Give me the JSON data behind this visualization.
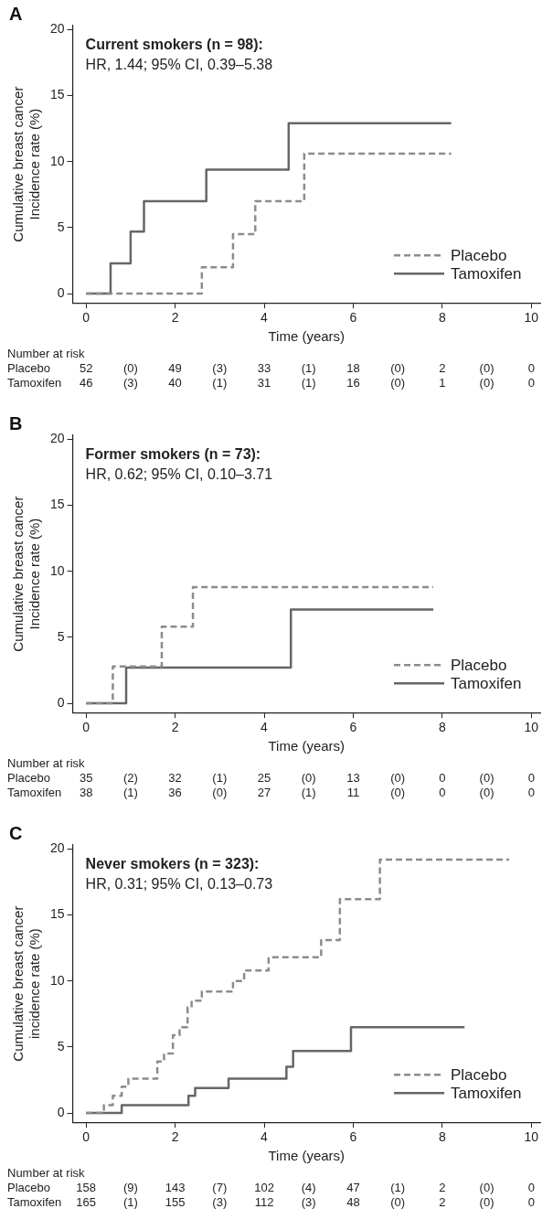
{
  "chart_data": [
    {
      "type": "step",
      "title": "Current smokers (n = 98):",
      "subtitle": "HR, 1.44; 95% CI, 0.39–5.38",
      "xlabel": "Time (years)",
      "ylabel": "Cumulative breast cancer Incidence rate (%)",
      "xlim": [
        -0.3,
        10.2
      ],
      "xticks": [
        0,
        2,
        4,
        6,
        8,
        10
      ],
      "ylim": [
        -0.7,
        20.3
      ],
      "yticks": [
        0,
        5,
        10,
        15,
        20
      ],
      "grid": false,
      "legend": "bottom right",
      "series": [
        {
          "name": "Placebo",
          "color": "#8c8c8c",
          "line_style": "dashed",
          "x": [
            0,
            2.6,
            3.3,
            3.8,
            4.9,
            8.2
          ],
          "values": [
            0,
            2.0,
            4.5,
            7.0,
            10.6,
            10.6
          ]
        },
        {
          "name": "Tamoxifen",
          "color": "#666666",
          "line_style": "solid",
          "x": [
            0,
            0.55,
            1.0,
            1.3,
            2.7,
            4.55,
            8.2
          ],
          "values": [
            0,
            2.3,
            4.7,
            7.0,
            9.4,
            12.9,
            12.9
          ]
        }
      ],
      "annotations": [
        "A",
        "Number at risk",
        "Placebo 52 (0) 49 (3) 33 (1) 18 (0) 2 (0) 0",
        "Tamoxifen 46 (3) 40 (1) 31 (1) 16 (0) 1 (0) 0"
      ]
    },
    {
      "type": "step",
      "title": "Former smokers (n = 73):",
      "subtitle": "HR, 0.62; 95% CI, 0.10–3.71",
      "xlabel": "Time (years)",
      "ylabel": "Cumulative breast cancer Incidence rate (%)",
      "xlim": [
        -0.3,
        10.2
      ],
      "xticks": [
        0,
        2,
        4,
        6,
        8,
        10
      ],
      "ylim": [
        -0.7,
        20.3
      ],
      "yticks": [
        0,
        5,
        10,
        15,
        20
      ],
      "grid": false,
      "legend": "bottom right",
      "series": [
        {
          "name": "Placebo",
          "color": "#8c8c8c",
          "line_style": "dashed",
          "x": [
            0,
            0.6,
            1.7,
            2.4,
            7.8
          ],
          "values": [
            0,
            2.8,
            5.8,
            8.8,
            8.8
          ]
        },
        {
          "name": "Tamoxifen",
          "color": "#666666",
          "line_style": "solid",
          "x": [
            0,
            0.9,
            4.6,
            7.8
          ],
          "values": [
            0,
            2.7,
            7.1,
            7.1
          ]
        }
      ],
      "annotations": [
        "B",
        "Number at risk",
        "Placebo 35 (2) 32 (1) 25 (0) 13 (0) 0 (0) 0",
        "Tamoxifen 38 (1) 36 (0) 27 (1) 11 (0) 0 (0) 0"
      ]
    },
    {
      "type": "step",
      "title": "Never smokers (n = 323):",
      "subtitle": "HR, 0.31; 95% CI, 0.13–0.73",
      "xlabel": "Time (years)",
      "ylabel": "Cumulative breast cancer incidence rate (%)",
      "xlim": [
        -0.3,
        10.2
      ],
      "xticks": [
        0,
        2,
        4,
        6,
        8,
        10
      ],
      "ylim": [
        -0.7,
        20.3
      ],
      "yticks": [
        0,
        5,
        10,
        15,
        20
      ],
      "grid": false,
      "legend": "bottom right",
      "series": [
        {
          "name": "Placebo",
          "color": "#8c8c8c",
          "line_style": "dashed",
          "x": [
            0,
            0.4,
            0.6,
            0.8,
            0.95,
            1.6,
            1.75,
            1.95,
            2.1,
            2.28,
            2.37,
            2.6,
            3.3,
            3.55,
            4.1,
            5.28,
            5.7,
            6.6,
            9.5
          ],
          "values": [
            0,
            0.6,
            1.3,
            2.0,
            2.6,
            3.9,
            4.5,
            5.9,
            6.5,
            8.0,
            8.5,
            9.2,
            10.0,
            10.8,
            11.8,
            13.1,
            16.2,
            19.2,
            19.2
          ]
        },
        {
          "name": "Tamoxifen",
          "color": "#666666",
          "line_style": "solid",
          "x": [
            0,
            0.8,
            2.3,
            2.45,
            3.2,
            4.5,
            4.65,
            5.95,
            8.5
          ],
          "values": [
            0,
            0.6,
            1.3,
            1.9,
            2.6,
            3.5,
            4.7,
            6.5,
            6.5
          ]
        }
      ],
      "annotations": [
        "C",
        "Number at risk",
        "Placebo 158 (9) 143 (7) 102 (4) 47 (1) 2 (0) 0",
        "Tamoxifen 165 (1) 155 (3) 112 (3) 48 (0) 2 (0) 0"
      ]
    }
  ]
}
